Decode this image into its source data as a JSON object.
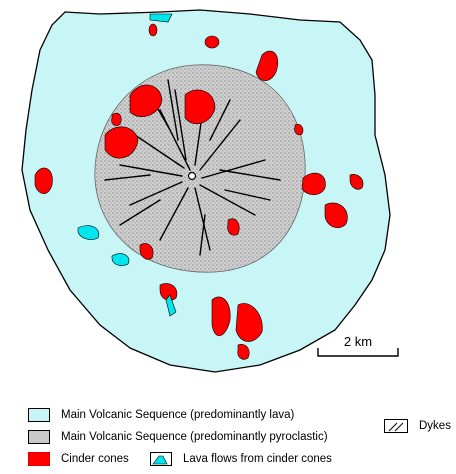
{
  "map": {
    "colors": {
      "lava": "#c8f5f5",
      "pyroclastic": "#c8c8c8",
      "cinder": "#ff0000",
      "flow": "#00e5ee",
      "outline": "#000000"
    },
    "scale_bar": {
      "label": "2 km"
    },
    "center_icon": "crater-circle-icon"
  },
  "legend": {
    "items": [
      {
        "key": "lava",
        "label": "Main Volcanic Sequence (predominantly lava)"
      },
      {
        "key": "pyroclastic",
        "label": "Main Volcanic Sequence (predominantly pyroclastic)"
      },
      {
        "key": "cinder",
        "label": "Cinder cones"
      },
      {
        "key": "flow",
        "label": "Lava flows from cinder cones"
      },
      {
        "key": "dykes",
        "label": "Dykes"
      }
    ]
  }
}
